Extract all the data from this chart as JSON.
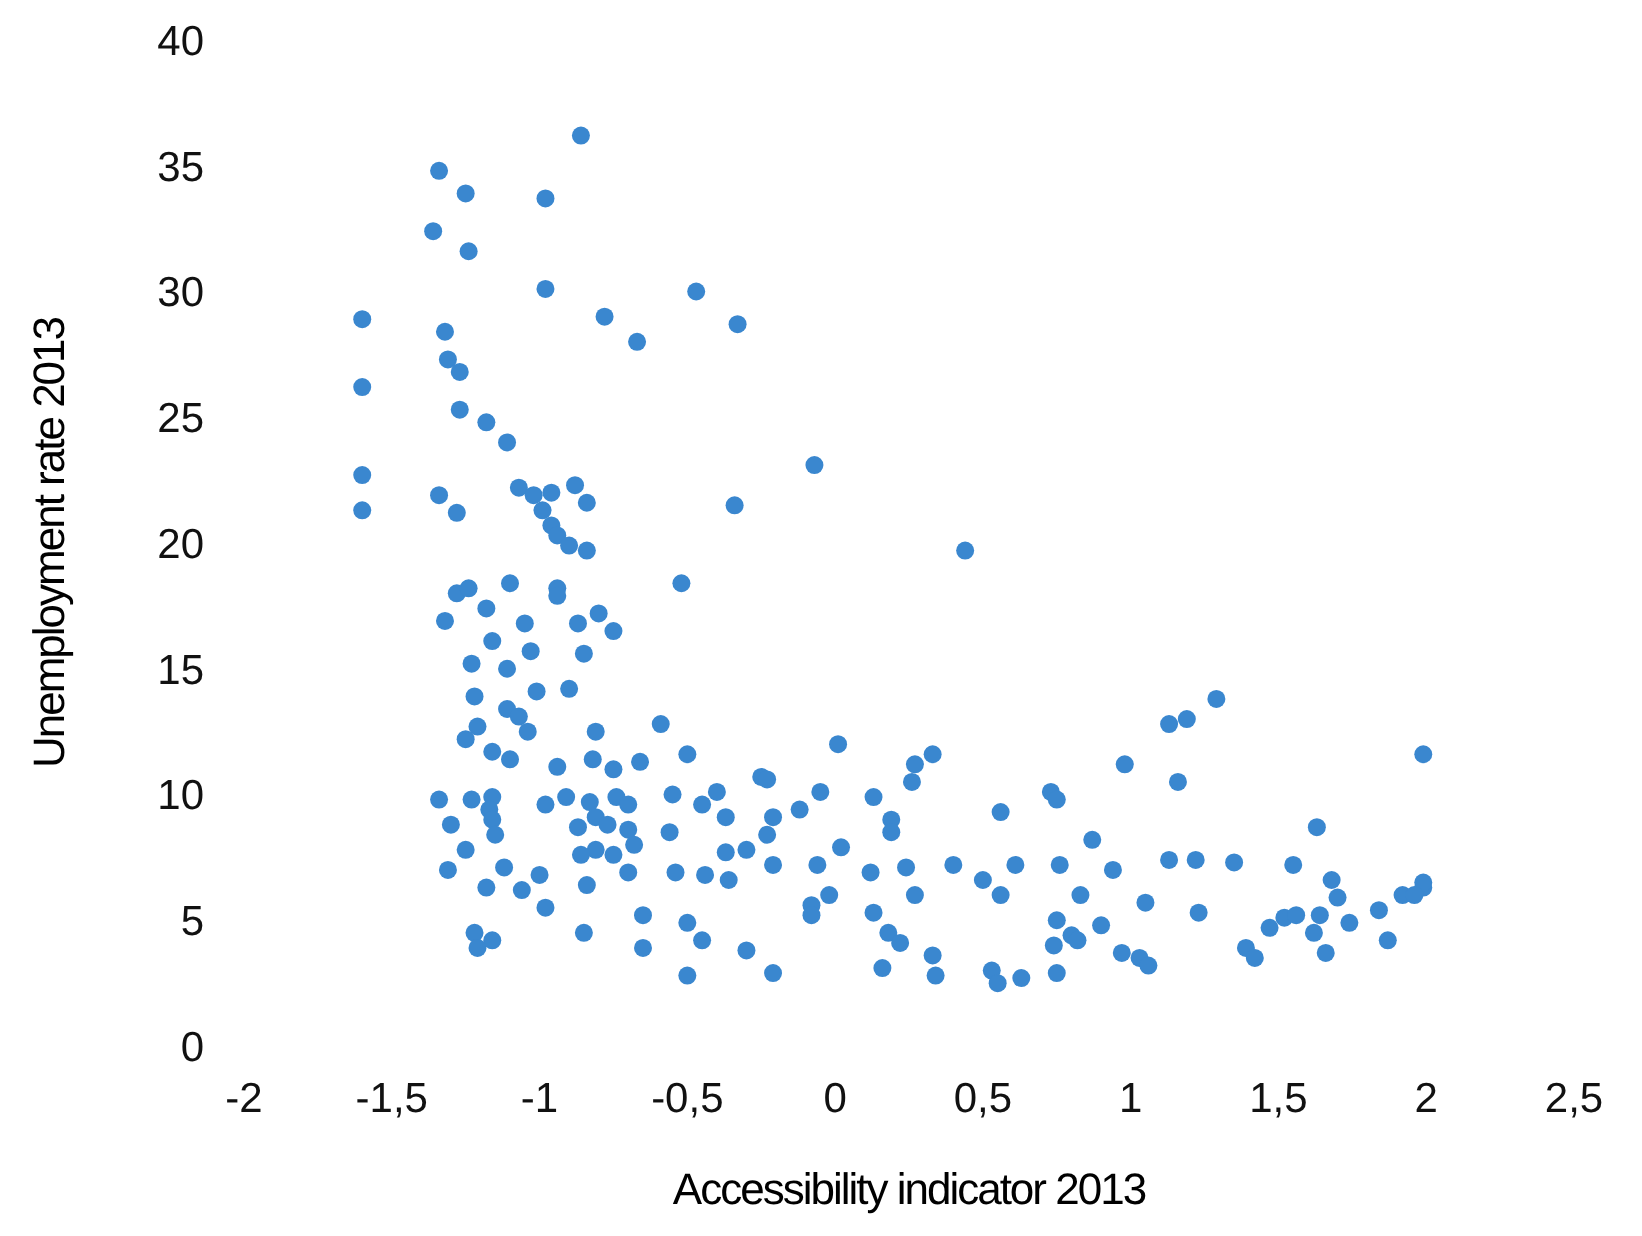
{
  "chart_data": {
    "type": "scatter",
    "xlabel": "Accessibility indicator 2013",
    "ylabel": "Unemployment rate 2013",
    "marker": "circle",
    "xlim": [
      -2,
      2.5
    ],
    "xticks": [
      {
        "value": -2,
        "label": "-2"
      },
      {
        "value": -1.5,
        "label": "-1,5"
      },
      {
        "value": -1,
        "label": "-1"
      },
      {
        "value": -0.5,
        "label": "-0,5"
      },
      {
        "value": 0,
        "label": "0"
      },
      {
        "value": 0.5,
        "label": "0,5"
      },
      {
        "value": 1,
        "label": "1"
      },
      {
        "value": 1.5,
        "label": "1,5"
      },
      {
        "value": 2,
        "label": "2"
      },
      {
        "value": 2.5,
        "label": "2,5"
      }
    ],
    "ylim": [
      0,
      40
    ],
    "yticks": [
      0,
      5,
      10,
      15,
      20,
      25,
      30,
      35,
      40
    ],
    "series": [
      {
        "color": "#3a87cf",
        "x": [
          -0.86,
          -1.34,
          -1.25,
          -0.98,
          -1.36,
          -1.24,
          -0.98,
          -0.47,
          -0.33,
          -0.78,
          -0.67,
          -1.6,
          -1.32,
          -1.31,
          -1.27,
          -1.6,
          -1.27,
          -1.18,
          -1.11,
          -0.07,
          -1.6,
          -1.34,
          -1.07,
          -1.02,
          -0.96,
          -0.88,
          -0.84,
          -0.34,
          -1.6,
          -1.28,
          -0.99,
          -0.96,
          -0.94,
          -0.9,
          -0.84,
          0.44,
          -0.52,
          -1.28,
          -1.24,
          -1.1,
          -0.94,
          -0.94,
          -1.18,
          -0.8,
          -0.75,
          -1.32,
          -1.05,
          -0.87,
          -1.16,
          -1.03,
          -0.85,
          -1.23,
          -1.11,
          -0.9,
          -1.01,
          -1.22,
          -1.11,
          -1.21,
          -1.07,
          -0.59,
          -1.25,
          -1.04,
          -0.81,
          0.01,
          0.33,
          -1.16,
          -1.1,
          -0.94,
          -0.82,
          -0.5,
          -0.66,
          -0.75,
          -0.25,
          0.27,
          -0.23,
          0.73,
          1.16,
          1.29,
          1.13,
          1.19,
          0.98,
          1.99,
          -1.34,
          -1.23,
          -1.16,
          -1.17,
          -0.98,
          -0.91,
          -0.83,
          -0.74,
          -0.7,
          -0.55,
          -0.45,
          -0.4,
          -0.05,
          0.13,
          0.26,
          0.56,
          0.75,
          0.87,
          -1.3,
          -1.16,
          -1.15,
          -1.25,
          -0.87,
          -0.81,
          -0.77,
          -0.7,
          -0.56,
          -0.37,
          -0.21,
          -0.68,
          -0.81,
          -0.75,
          -0.86,
          -0.37,
          -0.12,
          0.19,
          0.19,
          -0.23,
          0.02,
          -0.3,
          -0.21,
          -1.31,
          -1.12,
          -1,
          -0.84,
          -0.7,
          -0.54,
          -0.44,
          -0.36,
          -0.06,
          0.12,
          0.24,
          0.4,
          0.61,
          0.76,
          0.94,
          1.13,
          -1.06,
          -1.18,
          -0.98,
          -0.65,
          -0.5,
          -0.08,
          -0.08,
          -0.02,
          0.27,
          0.13,
          0.5,
          0.56,
          0.83,
          0.75,
          0.9,
          0.8,
          1.05,
          1.23,
          -1.22,
          -1.16,
          -1.21,
          -0.85,
          -0.65,
          -0.45,
          -0.3,
          0.18,
          0.22,
          0.33,
          0.74,
          0.82,
          0.97,
          1.03,
          -0.5,
          -0.21,
          0.16,
          0.34,
          0.53,
          0.55,
          0.63,
          0.75,
          1.06,
          1.35,
          1.22,
          1.55,
          1.63,
          1.47,
          1.52,
          1.56,
          1.39,
          1.42,
          1.64,
          1.62,
          1.7,
          1.66,
          1.84,
          1.87,
          1.74,
          1.68,
          1.92,
          1.99,
          1.99,
          1.96
        ],
        "values": [
          36.2,
          34.8,
          33.9,
          33.7,
          32.4,
          31.6,
          30.1,
          30.0,
          28.7,
          29.0,
          28.0,
          28.9,
          28.4,
          27.3,
          26.8,
          26.2,
          25.3,
          24.8,
          24.0,
          23.1,
          22.7,
          21.9,
          22.2,
          21.9,
          22.0,
          22.3,
          21.6,
          21.5,
          21.3,
          21.2,
          21.3,
          20.7,
          20.3,
          19.9,
          19.7,
          19.7,
          18.4,
          18.0,
          18.2,
          18.4,
          18.2,
          17.9,
          17.4,
          17.2,
          16.5,
          16.9,
          16.8,
          16.8,
          16.1,
          15.7,
          15.6,
          15.2,
          15.0,
          14.2,
          14.1,
          13.9,
          13.4,
          12.7,
          13.1,
          12.8,
          12.2,
          12.5,
          12.5,
          12.0,
          11.6,
          11.7,
          11.4,
          11.1,
          11.4,
          11.6,
          11.3,
          11.0,
          10.7,
          11.2,
          10.6,
          10.1,
          10.5,
          13.8,
          12.8,
          13.0,
          11.2,
          11.6,
          9.8,
          9.8,
          9.9,
          9.4,
          9.6,
          9.9,
          9.7,
          9.9,
          9.6,
          10.0,
          9.6,
          10.1,
          10.1,
          9.9,
          10.5,
          9.3,
          9.8,
          8.2,
          8.8,
          9.0,
          8.4,
          7.8,
          8.7,
          9.1,
          8.8,
          8.6,
          8.5,
          9.1,
          9.1,
          8.0,
          7.8,
          7.6,
          7.6,
          7.7,
          9.4,
          9.0,
          8.5,
          8.4,
          7.9,
          7.8,
          7.2,
          7.0,
          7.1,
          6.8,
          6.4,
          6.9,
          6.9,
          6.8,
          6.6,
          7.2,
          6.9,
          7.1,
          7.2,
          7.2,
          7.2,
          7.0,
          7.4,
          6.2,
          6.3,
          5.5,
          5.2,
          4.9,
          5.6,
          5.2,
          6.0,
          6.0,
          5.3,
          6.6,
          6.0,
          6.0,
          5.0,
          4.8,
          4.4,
          5.7,
          5.3,
          4.5,
          4.2,
          3.9,
          4.5,
          3.9,
          4.2,
          3.8,
          4.5,
          4.1,
          3.6,
          4.0,
          4.2,
          3.7,
          3.5,
          2.8,
          2.9,
          3.1,
          2.8,
          3.0,
          2.5,
          2.7,
          2.9,
          3.2,
          7.3,
          7.4,
          7.2,
          8.7,
          4.7,
          5.1,
          5.2,
          3.9,
          3.5,
          5.2,
          4.5,
          5.9,
          3.7,
          5.4,
          4.2,
          4.9,
          6.6,
          6.0,
          6.3,
          6.5,
          6.0
        ]
      }
    ]
  }
}
